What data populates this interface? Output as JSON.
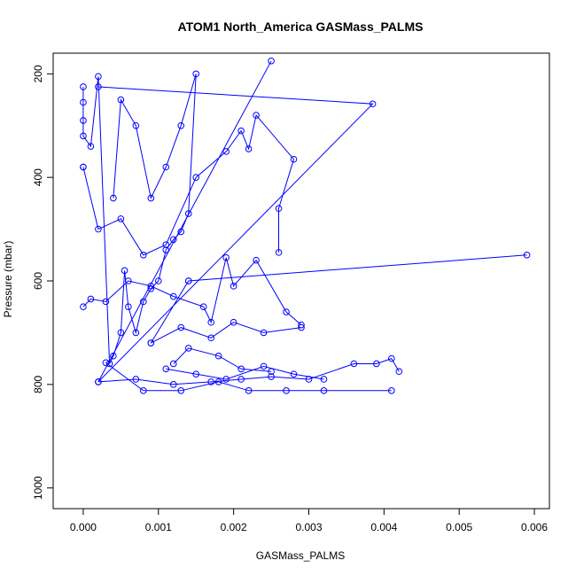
{
  "chart_data": {
    "type": "line",
    "title": "ATOM1 North_America GASMass_PALMS",
    "xlabel": "GASMass_PALMS",
    "ylabel": "Pressure (mbar)",
    "xlim": [
      -0.0004,
      0.0062
    ],
    "ylim": [
      1040,
      160
    ],
    "y_reversed": true,
    "x_ticks": [
      0,
      0.001,
      0.002,
      0.003,
      0.004,
      0.005,
      0.006
    ],
    "x_tick_labels": [
      "0.000",
      "0.001",
      "0.002",
      "0.003",
      "0.004",
      "0.005",
      "0.006"
    ],
    "y_ticks": [
      200,
      400,
      600,
      800,
      1000
    ],
    "y_tick_labels": [
      "200",
      "400",
      "600",
      "800",
      "1000"
    ],
    "grid": false,
    "legend": "none",
    "series_color": "#0000ff",
    "series": [
      {
        "x": [
          0.0,
          0.0,
          0.0,
          0.0,
          0.0001,
          0.0002,
          0.00035,
          0.0004,
          0.0005,
          0.00055,
          0.0006,
          0.0007,
          0.0008,
          0.0009,
          0.001,
          0.0011,
          0.0012,
          0.0013,
          0.0014,
          0.0015,
          0.0013,
          0.0011,
          0.0009,
          0.0007,
          0.0005,
          0.0004
        ],
        "y": [
          225,
          255,
          290,
          320,
          340,
          205,
          760,
          745,
          700,
          580,
          650,
          700,
          640,
          615,
          600,
          540,
          520,
          505,
          470,
          200,
          300,
          380,
          440,
          300,
          250,
          440
        ]
      },
      {
        "x": [
          0.0,
          0.0,
          0.0002,
          0.0005,
          0.0008,
          0.0011,
          0.0015,
          0.0019,
          0.0021,
          0.0022,
          0.0023,
          0.0028,
          0.0026,
          0.0026
        ],
        "y": [
          380,
          380,
          500,
          480,
          550,
          530,
          400,
          350,
          310,
          345,
          280,
          365,
          460,
          545
        ]
      },
      {
        "x": [
          0.0,
          0.0001,
          0.0003,
          0.0006,
          0.0009,
          0.0012,
          0.0016,
          0.0017,
          0.0019,
          0.002,
          0.0023,
          0.0027,
          0.0029
        ],
        "y": [
          650,
          635,
          640,
          600,
          610,
          630,
          650,
          680,
          555,
          610,
          560,
          660,
          685
        ]
      },
      {
        "x": [
          0.0002,
          0.00385,
          0.0002,
          0.0025
        ],
        "y": [
          225,
          258,
          795,
          175
        ]
      },
      {
        "x": [
          0.0014,
          0.0059,
          0.0014,
          0.0009
        ],
        "y": [
          600,
          550,
          600,
          720
        ]
      },
      {
        "x": [
          0.0002,
          0.0007,
          0.0012,
          0.0017,
          0.0021,
          0.0025,
          0.003,
          0.0036,
          0.0039,
          0.0041,
          0.0042
        ],
        "y": [
          795,
          790,
          800,
          795,
          790,
          785,
          790,
          760,
          760,
          750,
          775
        ]
      },
      {
        "x": [
          0.0003,
          0.0008,
          0.0013,
          0.0018,
          0.0022,
          0.0027,
          0.0032,
          0.0041
        ],
        "y": [
          758,
          812,
          812,
          795,
          812,
          812,
          812,
          812
        ]
      },
      {
        "x": [
          0.0011,
          0.0015,
          0.0019,
          0.0024,
          0.0028,
          0.0032
        ],
        "y": [
          770,
          780,
          790,
          765,
          780,
          790
        ]
      },
      {
        "x": [
          0.0009,
          0.0013,
          0.0017,
          0.002,
          0.0024,
          0.0029
        ],
        "y": [
          720,
          690,
          710,
          680,
          700,
          690
        ]
      },
      {
        "x": [
          0.0012,
          0.0014,
          0.0018,
          0.0021,
          0.0025
        ],
        "y": [
          760,
          730,
          745,
          770,
          775
        ]
      }
    ]
  }
}
